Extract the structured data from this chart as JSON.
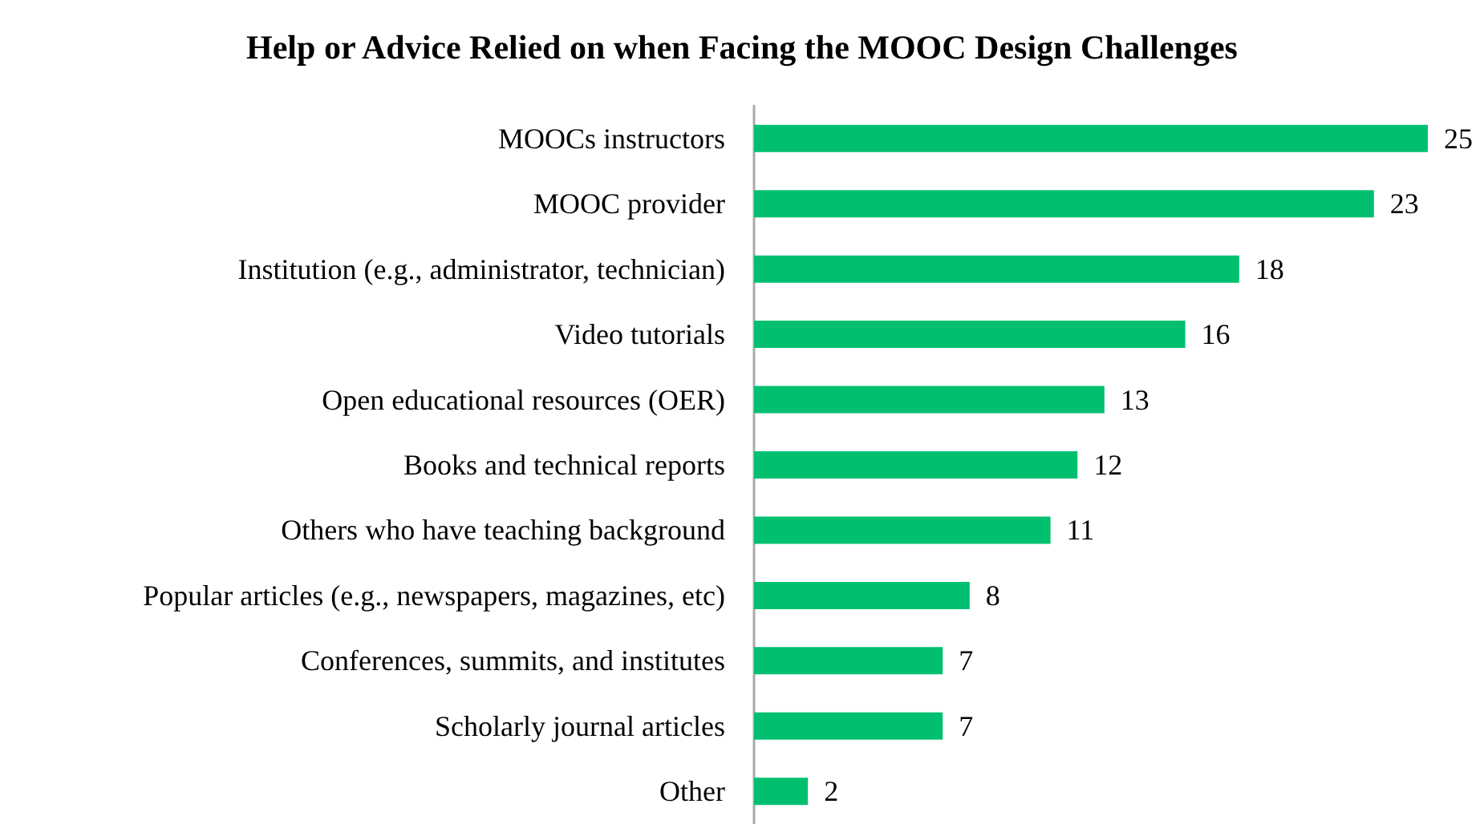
{
  "chart_data": {
    "type": "bar",
    "orientation": "horizontal",
    "title": "Help or Advice Relied on when Facing the MOOC Design Challenges",
    "categories": [
      "MOOCs instructors",
      "MOOC provider",
      "Institution (e.g., administrator, technician)",
      "Video tutorials",
      "Open educational resources (OER)",
      "Books and technical reports",
      "Others who have teaching background",
      "Popular articles (e.g., newspapers, magazines, etc)",
      "Conferences, summits, and institutes",
      "Scholarly journal articles",
      "Other"
    ],
    "values": [
      25,
      23,
      18,
      16,
      13,
      12,
      11,
      8,
      7,
      7,
      2
    ],
    "color": "#00c070",
    "data_labels": true
  }
}
